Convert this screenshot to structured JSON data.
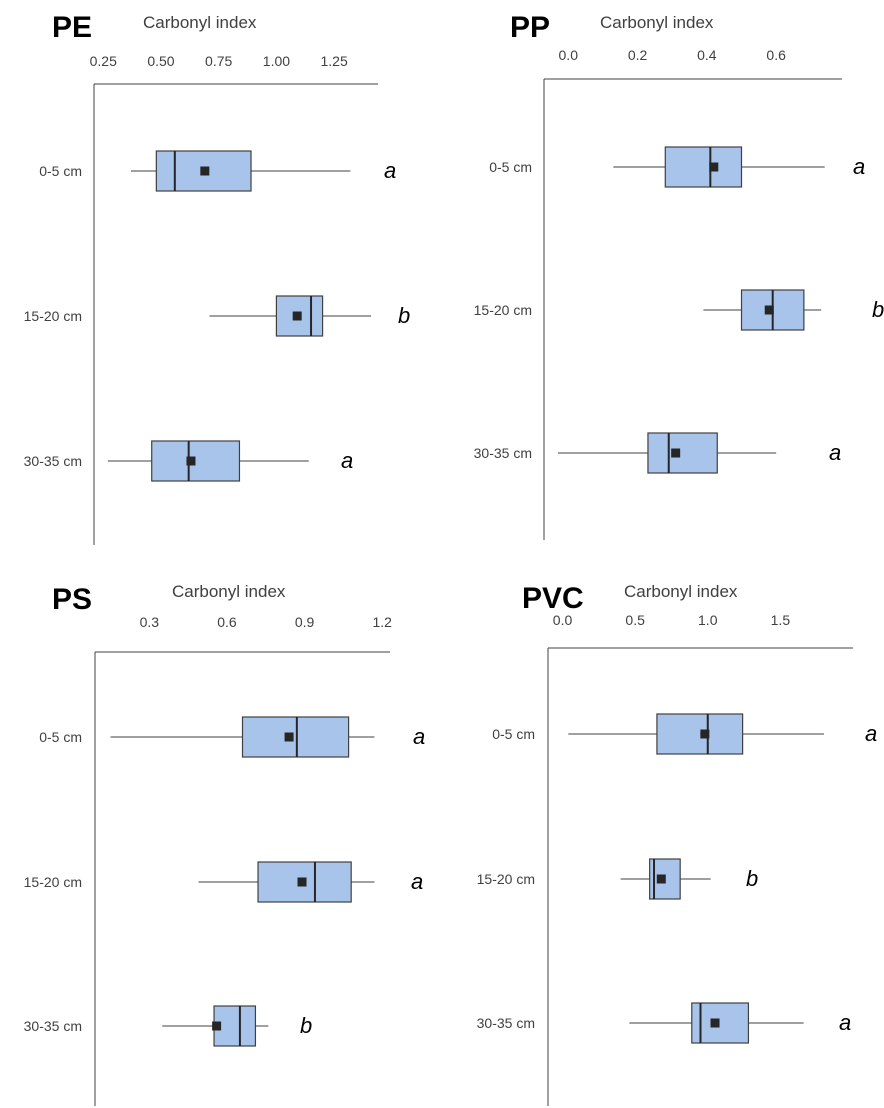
{
  "colors": {
    "box_fill": "#A9C4EB",
    "box_stroke": "#404040",
    "mean_marker": "#262626",
    "text": "#404040",
    "title": "#000000"
  },
  "chart_data": [
    {
      "type": "box",
      "title": "PE",
      "xlabel": "Carbonyl index",
      "ticks": [
        0.25,
        0.5,
        0.75,
        1.0,
        1.25
      ],
      "tick_labels": [
        "0.25",
        "0.50",
        "0.75",
        "1.00",
        "1.25"
      ],
      "xlim": [
        0.21,
        1.44
      ],
      "categories": [
        "0-5 cm",
        "15-20 cm",
        "30-35 cm"
      ],
      "boxes": [
        {
          "category": "0-5 cm",
          "min": 0.37,
          "q1": 0.48,
          "median": 0.56,
          "q3": 0.89,
          "max": 1.32,
          "mean": 0.69,
          "letter": "a"
        },
        {
          "category": "15-20 cm",
          "min": 0.71,
          "q1": 1.0,
          "median": 1.15,
          "q3": 1.2,
          "max": 1.41,
          "mean": 1.09,
          "letter": "b"
        },
        {
          "category": "30-35 cm",
          "min": 0.27,
          "q1": 0.46,
          "median": 0.62,
          "q3": 0.84,
          "max": 1.14,
          "mean": 0.63,
          "letter": "a"
        }
      ]
    },
    {
      "type": "box",
      "title": "PP",
      "xlabel": "Carbonyl index",
      "ticks": [
        0.0,
        0.2,
        0.4,
        0.6
      ],
      "tick_labels": [
        "0.0",
        "0.2",
        "0.4",
        "0.6"
      ],
      "xlim": [
        -0.07,
        0.79
      ],
      "categories": [
        "0-5 cm",
        "15-20 cm",
        "30-35 cm"
      ],
      "boxes": [
        {
          "category": "0-5 cm",
          "min": 0.13,
          "q1": 0.28,
          "median": 0.41,
          "q3": 0.5,
          "max": 0.74,
          "mean": 0.42,
          "letter": "a"
        },
        {
          "category": "15-20 cm",
          "min": 0.39,
          "q1": 0.5,
          "median": 0.59,
          "q3": 0.68,
          "max": 0.73,
          "mean": 0.58,
          "letter": "b"
        },
        {
          "category": "30-35 cm",
          "min": -0.03,
          "q1": 0.23,
          "median": 0.29,
          "q3": 0.43,
          "max": 0.6,
          "mean": 0.31,
          "letter": "a"
        }
      ]
    },
    {
      "type": "box",
      "title": "PS",
      "xlabel": "Carbonyl index",
      "ticks": [
        0.3,
        0.6,
        0.9,
        1.2
      ],
      "tick_labels": [
        "0.3",
        "0.6",
        "0.9",
        "1.2"
      ],
      "xlim": [
        0.09,
        1.23
      ],
      "categories": [
        "0-5 cm",
        "15-20 cm",
        "30-35 cm"
      ],
      "boxes": [
        {
          "category": "0-5 cm",
          "min": 0.15,
          "q1": 0.66,
          "median": 0.87,
          "q3": 1.07,
          "max": 1.17,
          "mean": 0.84,
          "letter": "a"
        },
        {
          "category": "15-20 cm",
          "min": 0.49,
          "q1": 0.72,
          "median": 0.94,
          "q3": 1.08,
          "max": 1.17,
          "mean": 0.89,
          "letter": "a"
        },
        {
          "category": "30-35 cm",
          "min": 0.35,
          "q1": 0.55,
          "median": 0.65,
          "q3": 0.71,
          "max": 0.76,
          "mean": 0.56,
          "letter": "b"
        }
      ]
    },
    {
      "type": "box",
      "title": "PVC",
      "xlabel": "Carbonyl index",
      "ticks": [
        0.0,
        0.5,
        1.0,
        1.5
      ],
      "tick_labels": [
        "0.0",
        "0.5",
        "1.0",
        "1.5"
      ],
      "xlim": [
        -0.1,
        2.0
      ],
      "categories": [
        "0-5 cm",
        "15-20 cm",
        "30-35 cm"
      ],
      "boxes": [
        {
          "category": "0-5 cm",
          "min": 0.04,
          "q1": 0.65,
          "median": 1.0,
          "q3": 1.24,
          "max": 1.8,
          "mean": 0.98,
          "letter": "a"
        },
        {
          "category": "15-20 cm",
          "min": 0.4,
          "q1": 0.6,
          "median": 0.63,
          "q3": 0.81,
          "max": 1.02,
          "mean": 0.68,
          "letter": "b"
        },
        {
          "category": "30-35 cm",
          "min": 0.46,
          "q1": 0.89,
          "median": 0.95,
          "q3": 1.28,
          "max": 1.66,
          "mean": 1.05,
          "letter": "a"
        }
      ]
    }
  ]
}
